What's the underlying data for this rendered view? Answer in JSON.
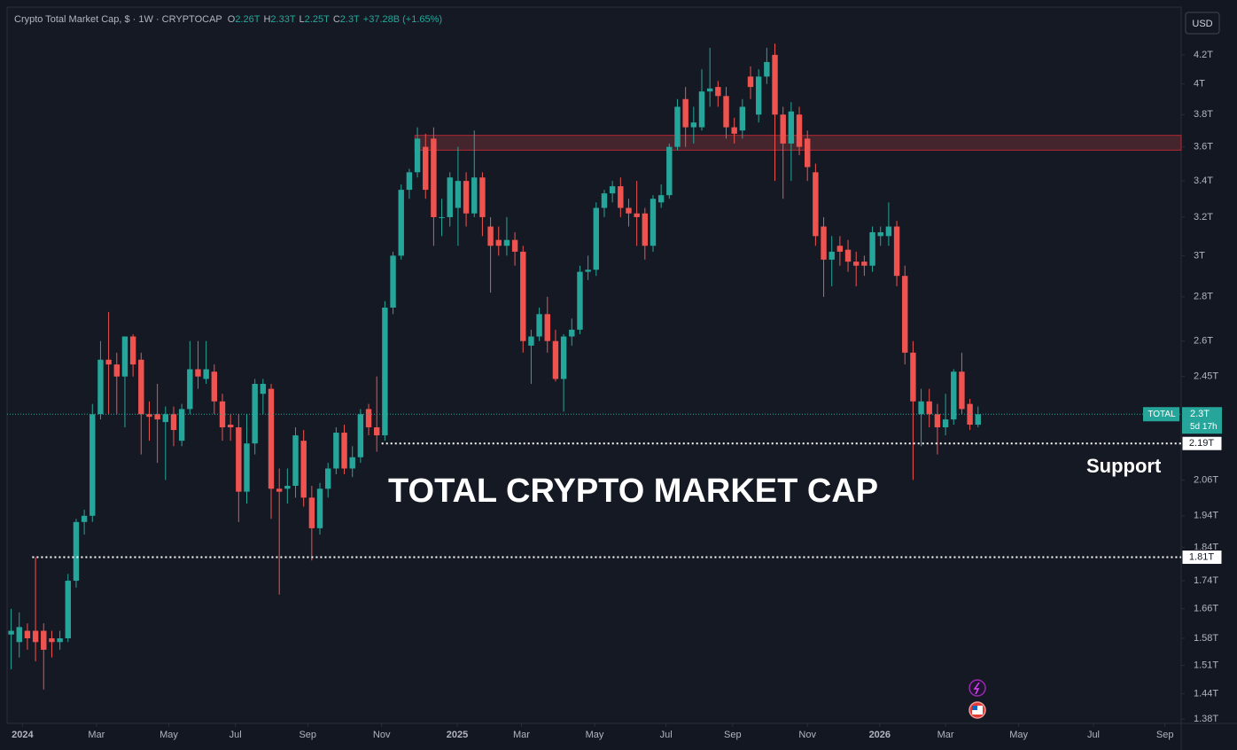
{
  "chart_data": {
    "type": "candlestick",
    "title": "Crypto Total Market Cap, $ · 1W · CRYPTOCAP",
    "ohlc_legend": [
      {
        "key": "O",
        "text": "2.26T"
      },
      {
        "key": "H",
        "text": "2.33T"
      },
      {
        "key": "L",
        "text": "2.25T"
      },
      {
        "key": "C",
        "text": "2.3T"
      }
    ],
    "change": "+37.28B (+1.65%)",
    "currency": "USD",
    "annotation": "TOTAL CRYPTO MARKET CAP",
    "support_label": "Support",
    "up_color": "#26a69a",
    "down_color": "#ef5350",
    "log_scale": true,
    "grid": false,
    "ylim": [
      1.37,
      4.55
    ],
    "yticks": [
      {
        "value": 4.2,
        "label": "4.2T"
      },
      {
        "value": 4,
        "label": "4T"
      },
      {
        "value": 3.8,
        "label": "3.8T"
      },
      {
        "value": 3.6,
        "label": "3.6T"
      },
      {
        "value": 3.4,
        "label": "3.4T"
      },
      {
        "value": 3.2,
        "label": "3.2T"
      },
      {
        "value": 3,
        "label": "3T"
      },
      {
        "value": 2.8,
        "label": "2.8T"
      },
      {
        "value": 2.6,
        "label": "2.6T"
      },
      {
        "value": 2.45,
        "label": "2.45T"
      },
      {
        "value": 2.06,
        "label": "2.06T"
      },
      {
        "value": 1.94,
        "label": "1.94T"
      },
      {
        "value": 1.84,
        "label": "1.84T"
      },
      {
        "value": 1.74,
        "label": "1.74T"
      },
      {
        "value": 1.66,
        "label": "1.66T"
      },
      {
        "value": 1.58,
        "label": "1.58T"
      },
      {
        "value": 1.51,
        "label": "1.51T"
      },
      {
        "value": 1.44,
        "label": "1.44T"
      },
      {
        "value": 1.38,
        "label": "1.38T"
      }
    ],
    "xlim": [
      -0.5,
      144
    ],
    "xticks": [
      {
        "value": 1.4,
        "label": "2024"
      },
      {
        "value": 10.5,
        "label": "Mar"
      },
      {
        "value": 19.4,
        "label": "May"
      },
      {
        "value": 27.6,
        "label": "Jul"
      },
      {
        "value": 36.5,
        "label": "Sep"
      },
      {
        "value": 45.6,
        "label": "Nov"
      },
      {
        "value": 54.9,
        "label": "2025"
      },
      {
        "value": 62.8,
        "label": "Mar"
      },
      {
        "value": 71.8,
        "label": "May"
      },
      {
        "value": 80.6,
        "label": "Jul"
      },
      {
        "value": 88.8,
        "label": "Sep"
      },
      {
        "value": 98,
        "label": "Nov"
      },
      {
        "value": 106.9,
        "label": "2026"
      },
      {
        "value": 115,
        "label": "Mar"
      },
      {
        "value": 124,
        "label": "May"
      },
      {
        "value": 133.2,
        "label": "Jul"
      },
      {
        "value": 142,
        "label": "Sep"
      }
    ],
    "last_price": {
      "name": "TOTAL",
      "value": 2.3,
      "label": "2.3T",
      "countdown": "5d 17h"
    },
    "levels": [
      {
        "value": 2.19,
        "label": "2.19T"
      },
      {
        "value": 1.81,
        "label": "1.81T"
      }
    ],
    "zone": {
      "low": 3.58,
      "high": 3.67
    },
    "open": [
      1.59,
      1.57,
      1.6,
      1.6,
      1.6,
      1.58,
      1.57,
      1.58,
      1.74,
      1.92,
      1.94,
      2.3,
      2.52,
      2.5,
      2.45,
      2.62,
      2.52,
      2.3,
      2.3,
      2.27,
      2.3,
      2.2,
      2.32,
      2.48,
      2.44,
      2.47,
      2.35,
      2.26,
      2.25,
      2.02,
      2.19,
      2.38,
      2.4,
      2.03,
      2.03,
      2.04,
      2.2,
      2.0,
      1.9,
      2.03,
      2.1,
      2.23,
      2.1,
      2.14,
      2.32,
      2.25,
      2.22,
      2.75,
      3.0,
      3.35,
      3.45,
      3.6,
      3.65,
      3.2,
      3.2,
      3.25,
      3.4,
      3.22,
      3.42,
      3.15,
      3.08,
      3.05,
      3.08,
      3.02,
      2.58,
      2.62,
      2.72,
      2.6,
      2.44,
      2.62,
      2.65,
      2.92,
      2.93,
      3.25,
      3.33,
      3.37,
      3.25,
      3.22,
      3.22,
      3.05,
      3.28,
      3.32,
      3.6,
      3.9,
      3.72,
      3.72,
      3.95,
      3.98,
      3.92,
      3.72,
      3.7,
      4.05,
      3.8,
      4.05,
      4.2,
      3.8,
      3.62,
      3.8,
      3.65,
      3.45,
      3.15,
      2.98,
      3.05,
      3.03,
      2.97,
      2.97,
      2.95,
      3.1,
      3.1,
      3.15,
      2.9,
      2.55,
      2.3,
      2.35,
      2.3,
      2.25,
      2.28,
      2.47,
      2.34,
      2.26
    ],
    "high": [
      1.66,
      1.65,
      1.62,
      1.81,
      1.62,
      1.6,
      1.6,
      1.76,
      1.93,
      1.96,
      2.34,
      2.6,
      2.73,
      2.55,
      2.62,
      2.63,
      2.55,
      2.35,
      2.42,
      2.33,
      2.33,
      2.34,
      2.6,
      2.6,
      2.6,
      2.5,
      2.38,
      2.3,
      2.3,
      2.3,
      2.44,
      2.44,
      2.42,
      2.1,
      2.1,
      2.25,
      2.24,
      2.04,
      2.05,
      2.12,
      2.25,
      2.26,
      2.18,
      2.32,
      2.34,
      2.45,
      2.78,
      3.02,
      3.38,
      3.47,
      3.72,
      3.68,
      3.72,
      3.3,
      3.45,
      3.6,
      3.45,
      3.7,
      3.45,
      3.2,
      3.15,
      3.2,
      3.12,
      3.05,
      2.65,
      2.75,
      2.8,
      2.65,
      2.63,
      2.7,
      2.95,
      3.0,
      3.28,
      3.35,
      3.4,
      3.42,
      3.3,
      3.4,
      3.25,
      3.32,
      3.38,
      3.62,
      3.9,
      3.98,
      3.85,
      4.1,
      4.25,
      4.02,
      3.98,
      3.78,
      3.9,
      4.12,
      4.1,
      4.25,
      4.28,
      3.85,
      3.88,
      3.85,
      3.7,
      3.5,
      3.2,
      3.1,
      3.1,
      3.08,
      3.02,
      3.0,
      3.15,
      3.15,
      3.28,
      3.18,
      2.95,
      2.6,
      2.4,
      2.4,
      2.34,
      2.38,
      2.48,
      2.55,
      2.36,
      2.33
    ],
    "low": [
      1.5,
      1.53,
      1.55,
      1.52,
      1.45,
      1.53,
      1.55,
      1.57,
      1.72,
      1.88,
      1.92,
      2.28,
      2.3,
      2.3,
      2.25,
      2.45,
      2.15,
      2.2,
      2.12,
      2.06,
      2.18,
      2.18,
      2.3,
      2.4,
      2.42,
      2.3,
      2.2,
      2.2,
      1.92,
      1.98,
      2.15,
      2.3,
      1.93,
      1.7,
      1.98,
      2.0,
      1.97,
      1.8,
      1.88,
      2.0,
      2.08,
      2.08,
      2.07,
      2.12,
      2.22,
      2.16,
      2.2,
      2.72,
      2.98,
      3.3,
      3.42,
      3.3,
      3.05,
      3.1,
      3.15,
      3.05,
      3.15,
      3.2,
      3.1,
      2.82,
      3.0,
      3.0,
      2.95,
      2.55,
      2.42,
      2.6,
      2.55,
      2.43,
      2.31,
      2.58,
      2.63,
      2.88,
      2.9,
      3.2,
      3.28,
      3.2,
      3.15,
      3.05,
      2.98,
      3.02,
      3.25,
      3.3,
      3.58,
      3.6,
      3.62,
      3.7,
      3.85,
      3.85,
      3.65,
      3.62,
      3.65,
      3.9,
      3.75,
      4.0,
      3.4,
      3.3,
      3.4,
      3.55,
      3.4,
      3.05,
      2.8,
      2.85,
      2.95,
      2.92,
      2.85,
      2.9,
      2.92,
      3.05,
      3.05,
      2.85,
      2.5,
      2.06,
      2.18,
      2.25,
      2.15,
      2.22,
      2.26,
      2.3,
      2.24,
      2.25
    ],
    "close": [
      1.6,
      1.61,
      1.58,
      1.57,
      1.55,
      1.57,
      1.58,
      1.74,
      1.92,
      1.94,
      2.3,
      2.52,
      2.5,
      2.45,
      2.62,
      2.5,
      2.3,
      2.29,
      2.28,
      2.3,
      2.24,
      2.32,
      2.48,
      2.45,
      2.48,
      2.35,
      2.25,
      2.25,
      2.02,
      2.19,
      2.42,
      2.42,
      2.03,
      2.02,
      2.04,
      2.22,
      2.0,
      1.9,
      2.03,
      2.1,
      2.23,
      2.1,
      2.14,
      2.3,
      2.25,
      2.22,
      2.75,
      3.0,
      3.35,
      3.45,
      3.65,
      3.35,
      3.2,
      3.2,
      3.42,
      3.4,
      3.22,
      3.42,
      3.2,
      3.05,
      3.05,
      3.08,
      3.02,
      2.6,
      2.62,
      2.72,
      2.6,
      2.44,
      2.62,
      2.65,
      2.92,
      2.93,
      3.25,
      3.33,
      3.37,
      3.25,
      3.22,
      3.2,
      3.05,
      3.3,
      3.32,
      3.6,
      3.85,
      3.72,
      3.75,
      3.95,
      3.97,
      3.92,
      3.72,
      3.68,
      3.85,
      3.98,
      4.05,
      4.15,
      3.8,
      3.62,
      3.82,
      3.6,
      3.48,
      3.1,
      2.98,
      3.02,
      3.02,
      2.97,
      2.95,
      2.95,
      3.12,
      3.12,
      3.15,
      2.9,
      2.55,
      2.35,
      2.35,
      2.3,
      2.25,
      2.28,
      2.47,
      2.32,
      2.26,
      2.3
    ]
  }
}
